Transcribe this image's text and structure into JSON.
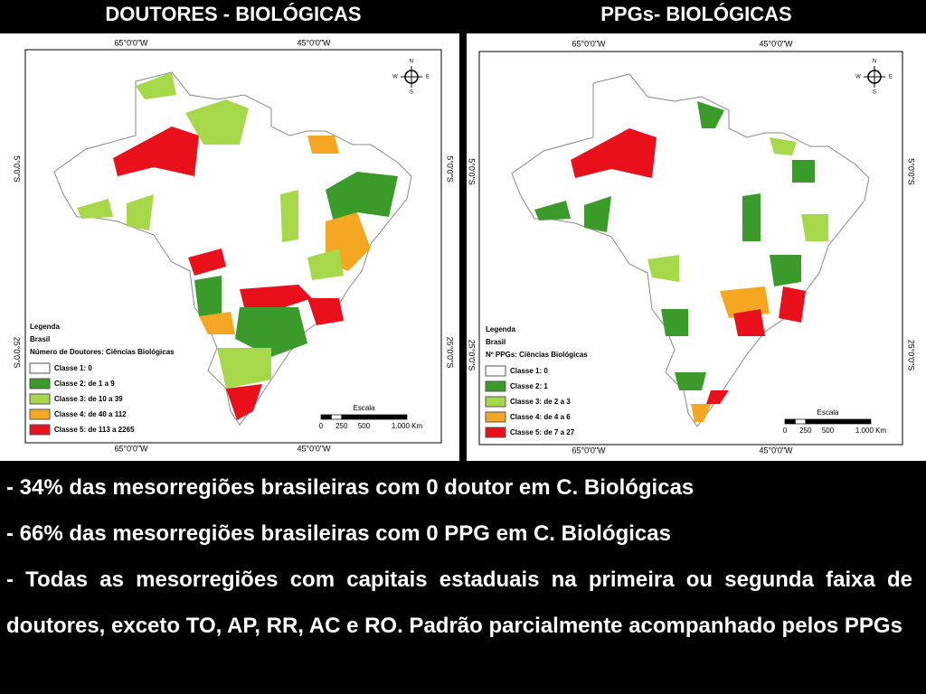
{
  "left_map": {
    "title": "DOUTORES - BIOLÓGICAS",
    "top_labels": [
      "65°0'0\"W",
      "45°0'0\"W"
    ],
    "bottom_labels": [
      "65°0'0\"W",
      "45°0'0\"W"
    ],
    "left_labels": [
      "5°0'0\"S",
      "25°0'0\"S"
    ],
    "right_labels": [
      "5°0'0\"S",
      "25°0'0\"S"
    ],
    "compass": [
      "N",
      "S",
      "E",
      "W"
    ],
    "legend": {
      "title": "Legenda",
      "subtitle": "Brasil",
      "heading": "Número de Doutores: Ciências Biológicas",
      "classes": [
        {
          "label": "Classe 1: 0",
          "color": "#ffffff"
        },
        {
          "label": "Classe 2: de 1 a 9",
          "color": "#3a9a2a"
        },
        {
          "label": "Classe 3: de 10 a 39",
          "color": "#a6d84a"
        },
        {
          "label": "Classe 4: de 40 a 112",
          "color": "#f5a623"
        },
        {
          "label": "Classe 5: de 113 a 2265",
          "color": "#e8101a"
        }
      ]
    },
    "scale": {
      "title": "Escala",
      "ticks": [
        "0",
        "250",
        "500",
        "1.000 Km"
      ]
    }
  },
  "right_map": {
    "title": "PPGs- BIOLÓGICAS",
    "top_labels": [
      "65°0'0\"W",
      "45°0'0\"W"
    ],
    "bottom_labels": [
      "65°0'0\"W",
      "45°0'0\"W"
    ],
    "left_labels": [
      "5°0'0\"S",
      "25°0'0\"S"
    ],
    "right_labels": [
      "5°0'0\"S",
      "25°0'0\"S"
    ],
    "compass": [
      "N",
      "S",
      "E",
      "W"
    ],
    "legend": {
      "title": "Legenda",
      "subtitle": "Brasil",
      "heading": "Nº PPGs: Ciências Biológicas",
      "classes": [
        {
          "label": "Classe 1: 0",
          "color": "#ffffff"
        },
        {
          "label": "Classe 2: 1",
          "color": "#3a9a2a"
        },
        {
          "label": "Classe 3: de 2 a 3",
          "color": "#a6d84a"
        },
        {
          "label": "Classe 4: de 4 a 6",
          "color": "#f5a623"
        },
        {
          "label": "Classe 5: de 7 a 27",
          "color": "#e8101a"
        }
      ]
    },
    "scale": {
      "title": "Escala",
      "ticks": [
        "0",
        "250",
        "500",
        "1.000 Km"
      ]
    }
  },
  "notes": [
    "- 34% das mesorregiões brasileiras com 0 doutor  em C. Biológicas",
    "- 66% das mesorregiões brasileiras com 0 PPG em C. Biológicas",
    "- Todas as mesorregiões com capitais estaduais na primeira ou segunda faixa de doutores, exceto TO, AP, RR, AC e RO. Padrão parcialmente acompanhado pelos PPGs"
  ]
}
